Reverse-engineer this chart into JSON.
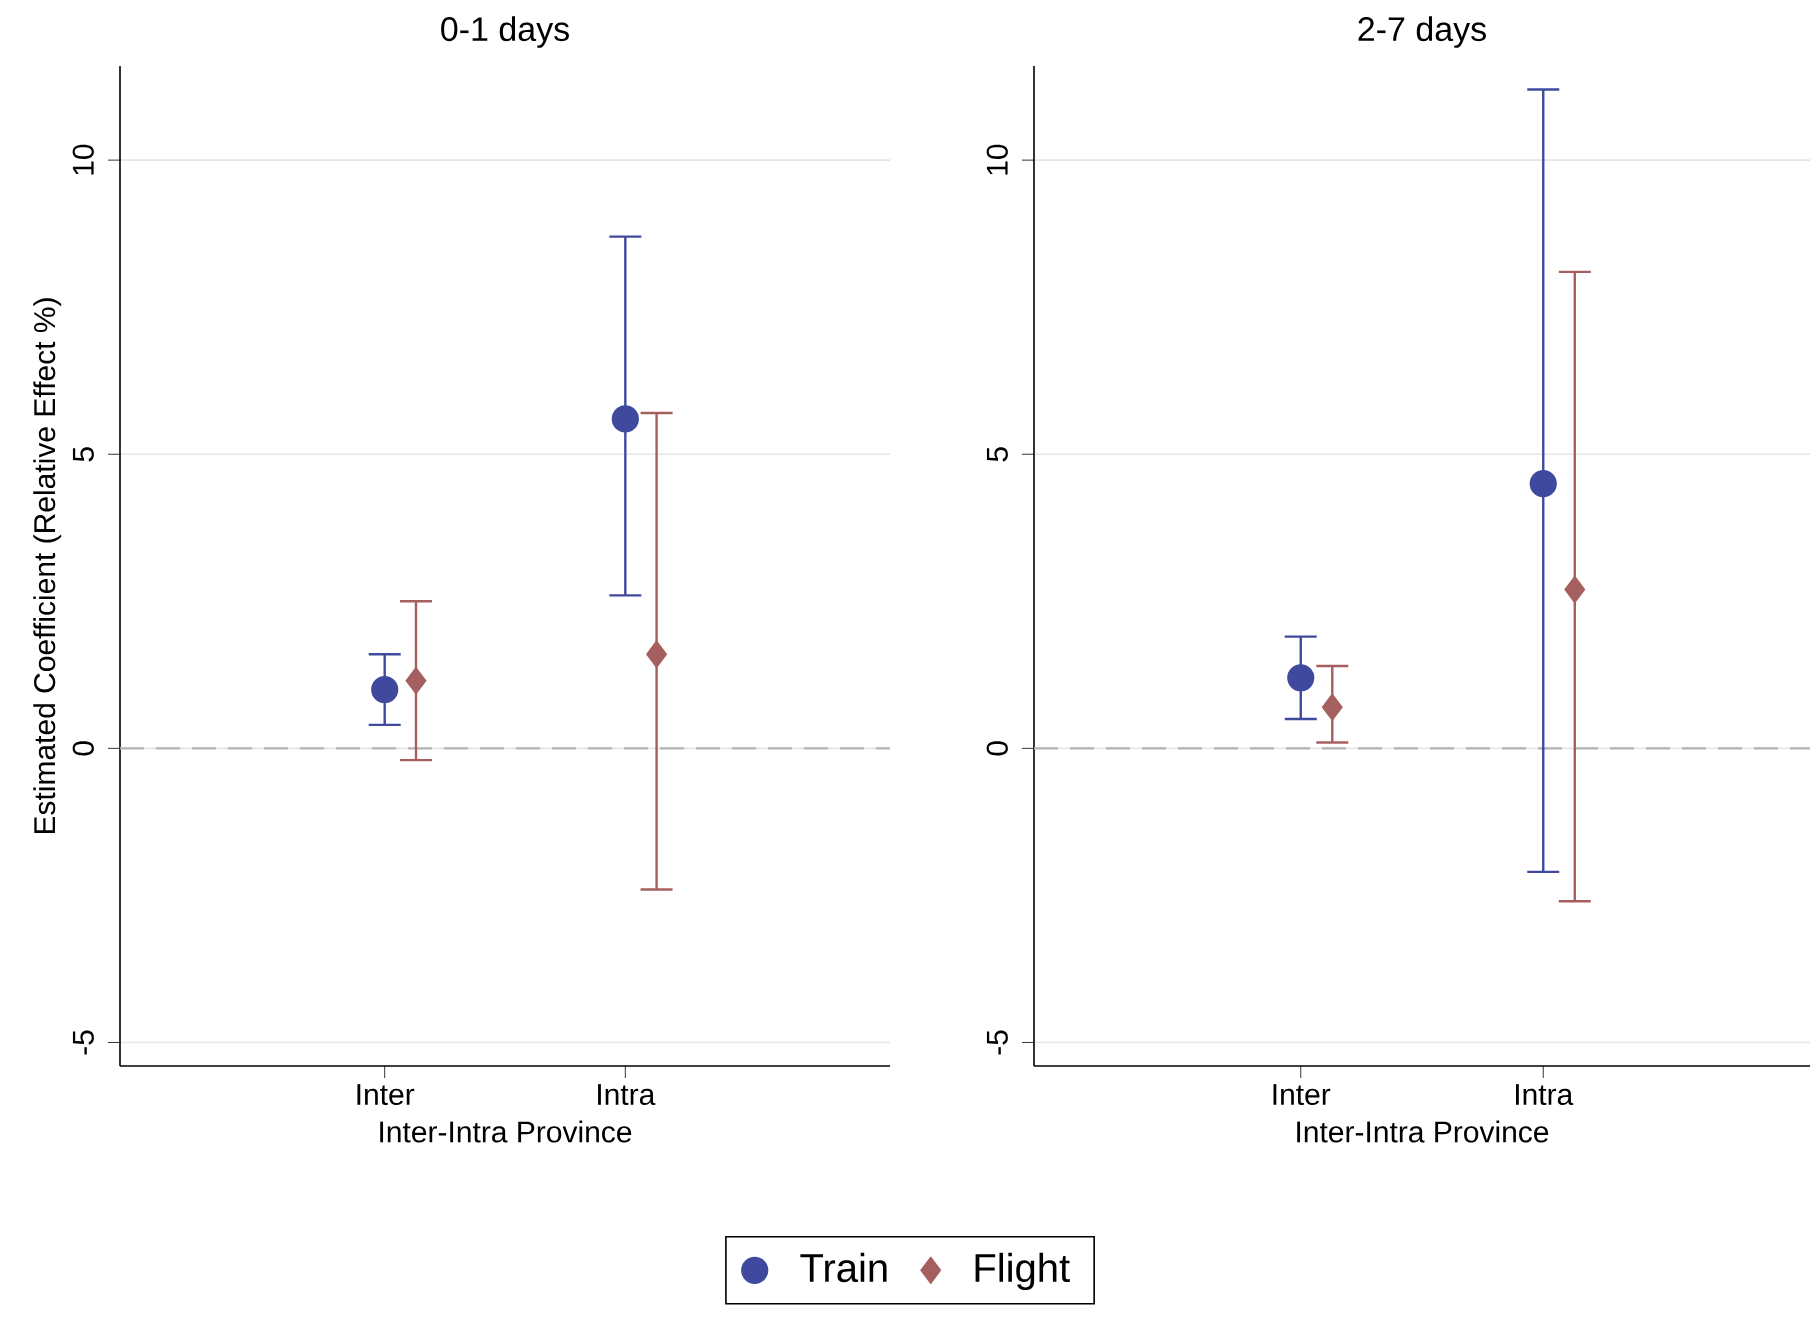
{
  "chart_data": [
    {
      "type": "scatter",
      "title": "0-1 days",
      "xlabel": "Inter-Intra Province",
      "ylabel": "Estimated Coefficient (Relative Effect %)",
      "categories": [
        "Inter",
        "Intra"
      ],
      "series": [
        {
          "name": "Train",
          "color": "#3f4a9e",
          "marker": "circle",
          "values": [
            1.0,
            5.6
          ],
          "errors": [
            [
              0.4,
              1.6
            ],
            [
              2.6,
              8.7
            ]
          ]
        },
        {
          "name": "Flight",
          "color": "#a65f5f",
          "marker": "diamond",
          "values": [
            1.15,
            1.6
          ],
          "errors": [
            [
              -0.2,
              2.5
            ],
            [
              -2.4,
              5.7
            ]
          ]
        }
      ],
      "ylim": [
        -5.4,
        11.6
      ],
      "yticks": [
        -5,
        0,
        5,
        10
      ],
      "grid": "y",
      "legend": "bottom",
      "ref_lines": [
        {
          "axis": "y",
          "value": 0,
          "color": "#b4b4b4",
          "line_style": "dashed"
        }
      ]
    },
    {
      "type": "scatter",
      "title": "2-7 days",
      "xlabel": "Inter-Intra Province",
      "categories": [
        "Inter",
        "Intra"
      ],
      "series": [
        {
          "color": "#3f4a9e",
          "marker": "circle",
          "values": [
            1.2,
            4.5
          ],
          "errors": [
            [
              0.5,
              1.9
            ],
            [
              -2.1,
              11.2
            ]
          ]
        },
        {
          "color": "#a65f5f",
          "marker": "diamond",
          "values": [
            0.7,
            2.7
          ],
          "errors": [
            [
              0.1,
              1.4
            ],
            [
              -2.6,
              8.1
            ]
          ]
        }
      ],
      "ylim": [
        -5.4,
        11.6
      ],
      "yticks": [
        -5,
        0,
        5,
        10
      ],
      "grid": "y",
      "ref_lines": [
        {
          "axis": "y",
          "value": 0,
          "color": "#b4b4b4",
          "line_style": "dashed"
        }
      ]
    }
  ]
}
